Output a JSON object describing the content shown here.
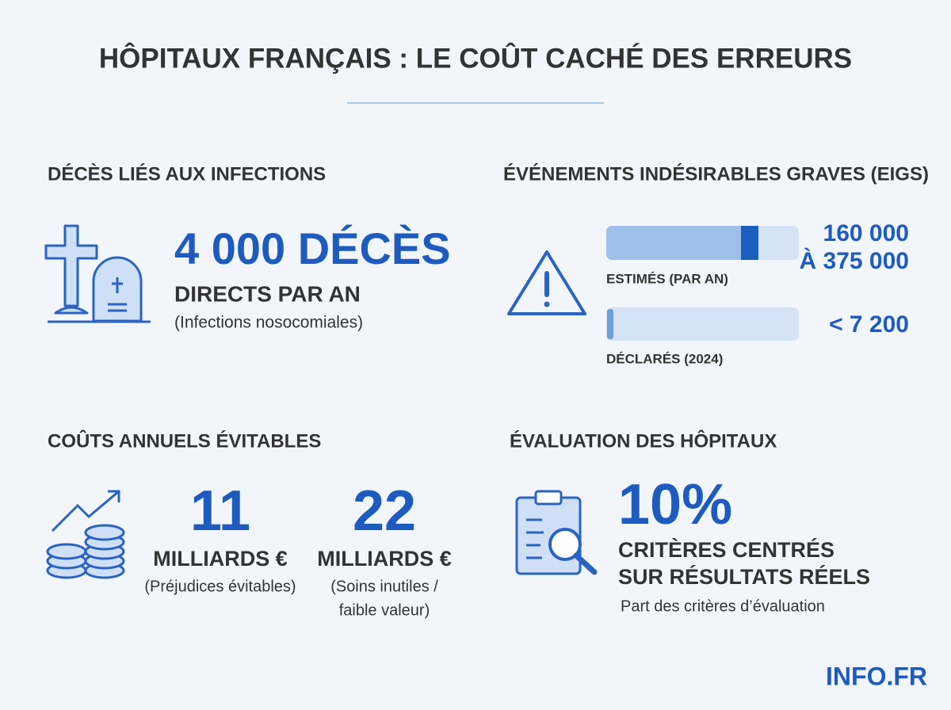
{
  "header": {
    "title": "HÔPITAUX FRANÇAIS : LE COÛT CACHÉ DES ERREURS"
  },
  "sections": [
    {
      "title": "DÉCÈS LIÉS AUX INFECTIONS",
      "headline": "4 000 DÉCÈS",
      "subline": "DIRECTS PAR AN",
      "note": "(Infections nosocomiales)"
    },
    {
      "title": "ÉVÉNEMENTS INDÉSIRABLES GRAVES (EIGS)",
      "rows": [
        {
          "value": [
            "160 000",
            "À 375 000"
          ],
          "label": "ESTIMÉS (PAR AN)"
        },
        {
          "value": [
            "< 7 200"
          ],
          "label": "DÉCLARÉS (2024)"
        }
      ]
    },
    {
      "title": "COÛTS ANNUELS ÉVITABLES",
      "items": [
        {
          "number": "11",
          "unit": "MILLIARDS €",
          "note": [
            "(Préjudices évitables)"
          ]
        },
        {
          "number": "22",
          "unit": "MILLIARDS €",
          "note": [
            "(Soins inutiles /",
            "faible valeur)"
          ]
        }
      ]
    },
    {
      "title": "ÉVALUATION DES HÔPITAUX",
      "headline": "10%",
      "subline": [
        "CRITÈRES CENTRÉS",
        "SUR RÉSULTATS RÉELS"
      ],
      "note": "Part des critères d’évaluation"
    }
  ],
  "footer": {
    "brand": "INFO.FR"
  }
}
